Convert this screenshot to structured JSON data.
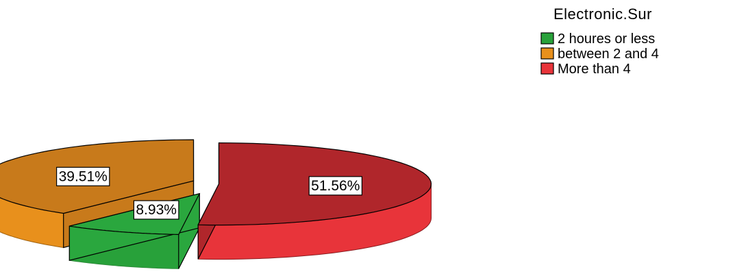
{
  "chart_data": {
    "type": "pie",
    "style": "3d-exploded",
    "legend_title": "Electronic.Sur",
    "legend_position": "top-right",
    "slices": [
      {
        "name": "2 houres or less",
        "value": 8.93,
        "label": "8.93%",
        "color": "#2aa73e",
        "side_color": "#28a13a",
        "edge_color": "#2e8b3a"
      },
      {
        "name": "between 2 and 4",
        "value": 39.51,
        "label": "39.51%",
        "color": "#c87a1b",
        "side_color": "#e8901c",
        "edge_color": "#a0620f"
      },
      {
        "name": "More than 4",
        "value": 51.56,
        "label": "51.56%",
        "color": "#b0262b",
        "side_color": "#e8343a",
        "edge_color": "#8a1c20"
      }
    ]
  }
}
